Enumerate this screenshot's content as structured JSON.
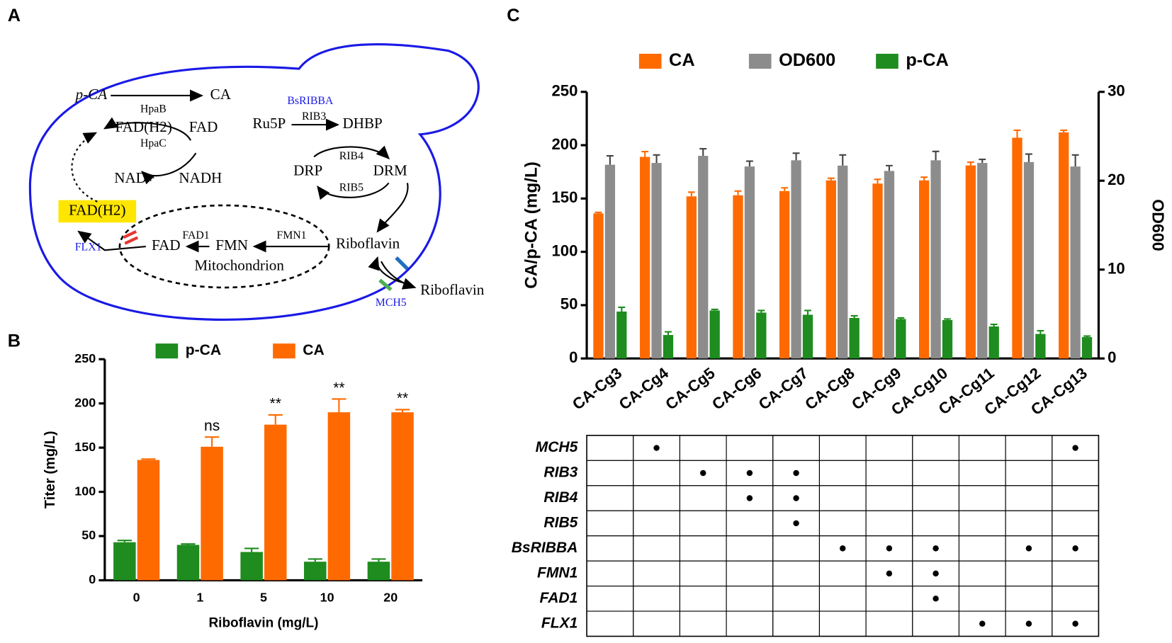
{
  "panel_labels": [
    "A",
    "B",
    "C"
  ],
  "diagram": {
    "labels": [
      "p-CA",
      "CA",
      "HpaB",
      "FAD(H2)",
      "FAD",
      "HpaC",
      "NAD+",
      "NADH",
      "BsRIBBA",
      "Ru5P",
      "RIB3",
      "DHBP",
      "RIB4",
      "DRP",
      "DRM",
      "RIB5",
      "FAD(H2)",
      "FLX1",
      "FAD",
      "FAD1",
      "FMN",
      "FMN1",
      "Riboflavin",
      "Mitochondrion",
      "Riboflavin",
      "MCH5"
    ]
  },
  "chart_data": [
    {
      "type": "bar",
      "categories": [
        "0",
        "1",
        "5",
        "10",
        "20"
      ],
      "xlabel": "Riboflavin (mg/L)",
      "ylabel": "Titer (mg/L)",
      "ylim": [
        0,
        250
      ],
      "yticks": [
        0,
        50,
        100,
        150,
        200,
        250
      ],
      "legend": "top",
      "series": [
        {
          "name": "p-CA",
          "color": "#1e8c1e",
          "values": [
            43,
            40,
            32,
            21,
            21
          ],
          "errors": [
            2,
            1,
            4,
            3,
            3
          ]
        },
        {
          "name": "CA",
          "color": "#ff6a00",
          "values": [
            136,
            151,
            176,
            190,
            190
          ],
          "errors": [
            1,
            11,
            11,
            15,
            3
          ],
          "annotations": [
            null,
            "ns",
            "**",
            "**",
            "**"
          ]
        }
      ]
    },
    {
      "type": "bar",
      "categories": [
        "CA-Cg3",
        "CA-Cg4",
        "CA-Cg5",
        "CA-Cg6",
        "CA-Cg7",
        "CA-Cg8",
        "CA-Cg9",
        "CA-Cg10",
        "CA-Cg11",
        "CA-Cg12",
        "CA-Cg13"
      ],
      "ylabel": "CA/p-CA (mg/L)",
      "y2label": "OD600",
      "ylim": [
        0,
        250
      ],
      "yticks": [
        0,
        50,
        100,
        150,
        200,
        250
      ],
      "y2lim": [
        0,
        30
      ],
      "y2ticks": [
        0,
        10,
        20,
        30
      ],
      "legend": "top",
      "series": [
        {
          "name": "CA",
          "color": "#ff6a00",
          "values": [
            136,
            189,
            152,
            153,
            157,
            167,
            164,
            167,
            181,
            207,
            212
          ],
          "errors": [
            1,
            5,
            4,
            4,
            3,
            2,
            4,
            3,
            3,
            7,
            2
          ]
        },
        {
          "name": "OD600",
          "color": "#8c8c8c",
          "axis": "y2",
          "values": [
            21.8,
            22.0,
            22.8,
            21.6,
            22.3,
            21.7,
            21.1,
            22.3,
            22.0,
            22.1,
            21.6
          ],
          "errors": [
            1.0,
            0.9,
            0.8,
            0.6,
            0.8,
            1.2,
            0.6,
            1.0,
            0.4,
            0.9,
            1.3
          ]
        },
        {
          "name": "p-CA",
          "color": "#1e8c1e",
          "values": [
            44,
            22,
            45,
            43,
            41,
            38,
            37,
            36,
            30,
            23,
            20
          ],
          "errors": [
            4,
            3,
            1,
            2,
            4,
            2,
            1,
            1,
            2,
            3,
            1
          ]
        }
      ]
    }
  ],
  "table": {
    "rows": [
      {
        "gene": "MCH5",
        "marks": [
          false,
          true,
          false,
          false,
          false,
          false,
          false,
          false,
          false,
          false,
          true
        ]
      },
      {
        "gene": "RIB3",
        "marks": [
          false,
          false,
          true,
          true,
          true,
          false,
          false,
          false,
          false,
          false,
          false
        ]
      },
      {
        "gene": "RIB4",
        "marks": [
          false,
          false,
          false,
          true,
          true,
          false,
          false,
          false,
          false,
          false,
          false
        ]
      },
      {
        "gene": "RIB5",
        "marks": [
          false,
          false,
          false,
          false,
          true,
          false,
          false,
          false,
          false,
          false,
          false
        ]
      },
      {
        "gene": "BsRIBBA",
        "marks": [
          false,
          false,
          false,
          false,
          false,
          true,
          true,
          true,
          false,
          true,
          true
        ]
      },
      {
        "gene": "FMN1",
        "marks": [
          false,
          false,
          false,
          false,
          false,
          false,
          true,
          true,
          false,
          false,
          false
        ]
      },
      {
        "gene": "FAD1",
        "marks": [
          false,
          false,
          false,
          false,
          false,
          false,
          false,
          true,
          false,
          false,
          false
        ]
      },
      {
        "gene": "FLX1",
        "marks": [
          false,
          false,
          false,
          false,
          false,
          false,
          false,
          false,
          true,
          true,
          true
        ]
      }
    ]
  }
}
